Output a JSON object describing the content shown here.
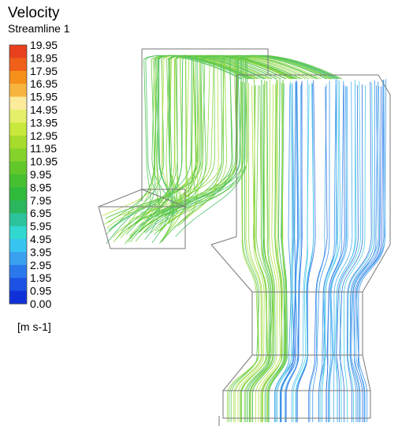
{
  "legend": {
    "title": "Velocity",
    "subtitle": "Streamline 1",
    "labels": [
      "19.95",
      "18.95",
      "17.95",
      "16.95",
      "15.95",
      "14.95",
      "13.95",
      "12.95",
      "11.95",
      "10.95",
      "9.95",
      "8.95",
      "7.95",
      "6.95",
      "5.95",
      "4.95",
      "3.95",
      "2.95",
      "1.95",
      "0.95",
      "0.00"
    ],
    "unit": "[m s-1]"
  }
}
